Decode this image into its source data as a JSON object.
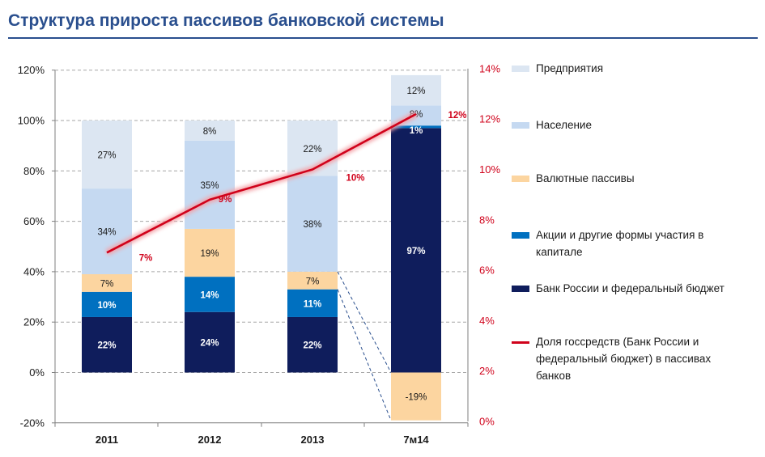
{
  "title": "Структура прироста пассивов банковской системы",
  "colors": {
    "title": "#2a4f8e",
    "enterprises": "#dce6f2",
    "population": "#c5d9f1",
    "fx": "#fcd5a0",
    "equity": "#0070c0",
    "cbr": "#0f1d5c",
    "line": "#d0021b",
    "axis_left": "#1a1a1a",
    "axis_right": "#d0021b"
  },
  "chart_data": {
    "type": "bar",
    "stacked": true,
    "categories": [
      "2011",
      "2012",
      "2013",
      "7м14"
    ],
    "ylim": [
      -20,
      120
    ],
    "yticks": [
      "-20%",
      "0%",
      "20%",
      "40%",
      "60%",
      "80%",
      "100%",
      "120%"
    ],
    "y2lim": [
      0,
      14
    ],
    "y2ticks": [
      "0%",
      "2%",
      "4%",
      "6%",
      "8%",
      "10%",
      "12%",
      "14%"
    ],
    "series": [
      {
        "name": "Банк России и федеральный бюджет",
        "key": "cbr",
        "values": [
          22,
          24,
          22,
          97
        ],
        "labels": [
          "22%",
          "24%",
          "22%",
          "97%"
        ]
      },
      {
        "name": "Акции и другие формы участия в капитале",
        "key": "equity",
        "values": [
          10,
          14,
          11,
          1
        ],
        "labels": [
          "10%",
          "14%",
          "11%",
          "1%"
        ]
      },
      {
        "name": "Валютные пассивы",
        "key": "fx",
        "values": [
          7,
          19,
          7,
          -19
        ],
        "labels": [
          "7%",
          "19%",
          "7%",
          "-19%"
        ]
      },
      {
        "name": "Население",
        "key": "population",
        "values": [
          34,
          35,
          38,
          8
        ],
        "labels": [
          "34%",
          "35%",
          "38%",
          "8%"
        ]
      },
      {
        "name": "Предприятия",
        "key": "enterprises",
        "values": [
          27,
          8,
          22,
          12
        ],
        "labels": [
          "27%",
          "8%",
          "22%",
          "12%"
        ]
      }
    ],
    "line": {
      "name": "Доля госсредств (Банк России и федеральный бюджет) в пассивах банков",
      "axis": "right",
      "values": [
        6.7,
        8.8,
        10.0,
        12.2
      ],
      "labels": [
        "7%",
        "9%",
        "10%",
        "12%"
      ]
    },
    "grid": "horizontal dashed",
    "legend_position": "right"
  },
  "legend": [
    {
      "label": "Предприятия",
      "key": "enterprises",
      "kind": "box"
    },
    {
      "label": "Население",
      "key": "population",
      "kind": "box"
    },
    {
      "label": "Валютные пассивы",
      "key": "fx",
      "kind": "box"
    },
    {
      "label": "Акции и другие формы участия в капитале",
      "key": "equity",
      "kind": "box"
    },
    {
      "label": "Банк России и федеральный бюджет",
      "key": "cbr",
      "kind": "box"
    },
    {
      "label": "Доля госсредств (Банк России и федеральный бюджет) в пассивах банков",
      "key": "line",
      "kind": "line"
    }
  ]
}
